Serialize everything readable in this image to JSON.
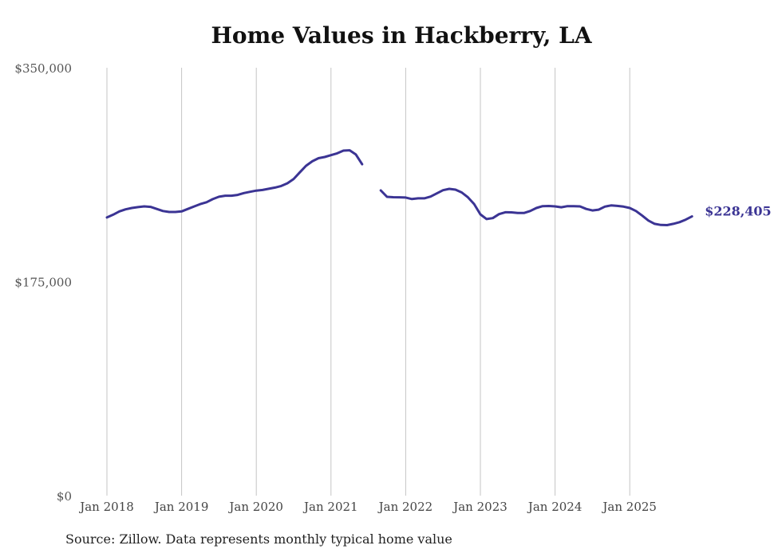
{
  "chart_data": {
    "type": "line",
    "title": "Home Values in Hackberry, LA",
    "xlabel": "",
    "ylabel": "",
    "ylim": [
      0,
      350000
    ],
    "yticks": [
      {
        "value": 0,
        "label": "$0"
      },
      {
        "value": 175000,
        "label": "$175,000"
      },
      {
        "value": 350000,
        "label": "$350,000"
      }
    ],
    "xticks": [
      {
        "year": 2018,
        "label": "Jan 2018"
      },
      {
        "year": 2019,
        "label": "Jan 2019"
      },
      {
        "year": 2020,
        "label": "Jan 2020"
      },
      {
        "year": 2021,
        "label": "Jan 2021"
      },
      {
        "year": 2022,
        "label": "Jan 2022"
      },
      {
        "year": 2023,
        "label": "Jan 2023"
      },
      {
        "year": 2024,
        "label": "Jan 2024"
      },
      {
        "year": 2025,
        "label": "Jan 2025"
      }
    ],
    "grid": "vertical",
    "series": [
      {
        "name": "Typical home value",
        "color": "#3b3494",
        "start": "2018-01",
        "values": [
          227500,
          229800,
          232500,
          234200,
          235300,
          236000,
          236600,
          236200,
          234500,
          232800,
          232000,
          232000,
          232500,
          234500,
          236500,
          238500,
          240000,
          242500,
          244500,
          245300,
          245300,
          246000,
          247500,
          248500,
          249500,
          250000,
          251000,
          252000,
          253300,
          255500,
          259000,
          264500,
          269800,
          273500,
          276000,
          277000,
          278500,
          280000,
          282200,
          282500,
          279000,
          271100,
          null,
          null,
          249600,
          244400,
          244100,
          244000,
          243800,
          242600,
          243200,
          243200,
          244600,
          247200,
          249800,
          250900,
          250300,
          248000,
          244000,
          238500,
          230100,
          226200,
          227000,
          230300,
          231800,
          231700,
          231200,
          231200,
          232800,
          235300,
          236800,
          236900,
          236600,
          235900,
          236800,
          236700,
          236600,
          234500,
          233300,
          233900,
          236400,
          237400,
          237000,
          236400,
          235300,
          232800,
          229000,
          225000,
          222300,
          221400,
          221300,
          222300,
          223700,
          225800,
          228405
        ]
      }
    ],
    "end_label": "$228,405",
    "source": "Source: Zillow. Data represents monthly typical home value"
  }
}
